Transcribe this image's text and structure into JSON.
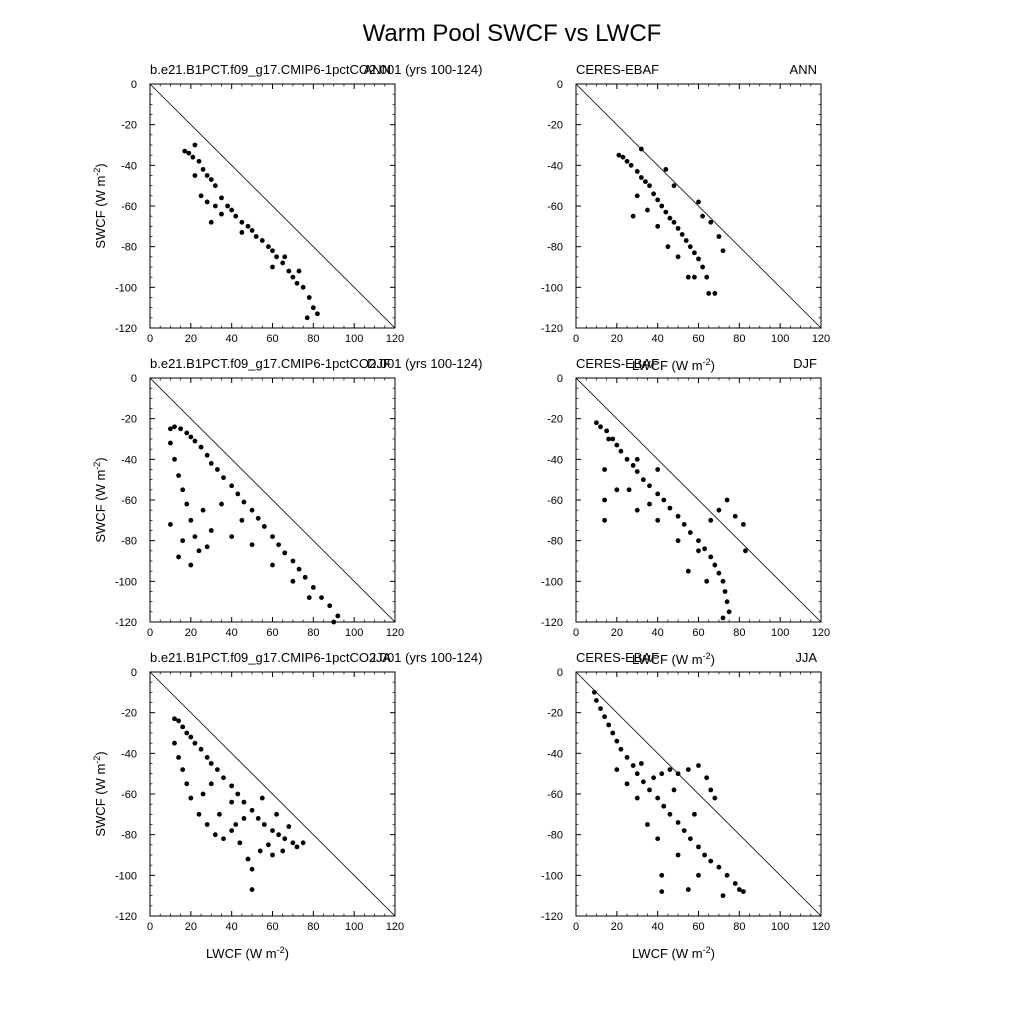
{
  "title": "Warm Pool SWCF vs LWCF",
  "axis_labels": {
    "x_base": "LWCF (W m",
    "y_base": "SWCF (W m",
    "unit_exponent": "-2",
    "close": ")"
  },
  "chart_data": [
    {
      "type": "scatter",
      "left_label": "b.e21.B1PCT.f09_g17.CMIP6-1pctCO2.001 (yrs 100-124)",
      "right_label": "ANN",
      "xlim": [
        0,
        120
      ],
      "ylim": [
        -120,
        0
      ],
      "xticks": [
        0,
        20,
        40,
        60,
        80,
        100,
        120
      ],
      "yticks": [
        0,
        -20,
        -40,
        -60,
        -80,
        -100,
        -120
      ],
      "xlabel": "",
      "ylabel": "SWCF (W m-2)",
      "reference_line": "y = -x",
      "grid": false,
      "points": [
        [
          17,
          -33
        ],
        [
          19,
          -34
        ],
        [
          21,
          -36
        ],
        [
          22,
          -30
        ],
        [
          24,
          -38
        ],
        [
          26,
          -42
        ],
        [
          28,
          -45
        ],
        [
          30,
          -47
        ],
        [
          32,
          -50
        ],
        [
          22,
          -45
        ],
        [
          25,
          -55
        ],
        [
          28,
          -58
        ],
        [
          32,
          -60
        ],
        [
          35,
          -56
        ],
        [
          38,
          -60
        ],
        [
          40,
          -62
        ],
        [
          42,
          -65
        ],
        [
          45,
          -68
        ],
        [
          48,
          -70
        ],
        [
          50,
          -72
        ],
        [
          52,
          -75
        ],
        [
          55,
          -77
        ],
        [
          58,
          -80
        ],
        [
          60,
          -82
        ],
        [
          62,
          -85
        ],
        [
          65,
          -88
        ],
        [
          68,
          -92
        ],
        [
          70,
          -95
        ],
        [
          72,
          -98
        ],
        [
          75,
          -100
        ],
        [
          78,
          -105
        ],
        [
          80,
          -110
        ],
        [
          82,
          -113
        ],
        [
          77,
          -115
        ],
        [
          30,
          -68
        ],
        [
          35,
          -64
        ],
        [
          45,
          -73
        ],
        [
          60,
          -90
        ],
        [
          66,
          -85
        ],
        [
          73,
          -92
        ]
      ]
    },
    {
      "type": "scatter",
      "left_label": "CERES-EBAF",
      "right_label": "ANN",
      "xlim": [
        0,
        120
      ],
      "ylim": [
        -120,
        0
      ],
      "xticks": [
        0,
        20,
        40,
        60,
        80,
        100,
        120
      ],
      "yticks": [
        0,
        -20,
        -40,
        -60,
        -80,
        -100,
        -120
      ],
      "xlabel": "LWCF (W m-2)",
      "ylabel": "",
      "reference_line": "y = -x",
      "grid": false,
      "points": [
        [
          21,
          -35
        ],
        [
          23,
          -36
        ],
        [
          25,
          -38
        ],
        [
          27,
          -40
        ],
        [
          30,
          -43
        ],
        [
          32,
          -46
        ],
        [
          34,
          -48
        ],
        [
          36,
          -50
        ],
        [
          38,
          -54
        ],
        [
          40,
          -57
        ],
        [
          42,
          -60
        ],
        [
          44,
          -63
        ],
        [
          46,
          -66
        ],
        [
          48,
          -68
        ],
        [
          50,
          -71
        ],
        [
          52,
          -74
        ],
        [
          54,
          -77
        ],
        [
          56,
          -80
        ],
        [
          58,
          -83
        ],
        [
          60,
          -86
        ],
        [
          62,
          -90
        ],
        [
          64,
          -95
        ],
        [
          65,
          -103
        ],
        [
          68,
          -103
        ],
        [
          30,
          -55
        ],
        [
          28,
          -65
        ],
        [
          40,
          -70
        ],
        [
          45,
          -80
        ],
        [
          50,
          -85
        ],
        [
          55,
          -95
        ],
        [
          62,
          -65
        ],
        [
          66,
          -68
        ],
        [
          70,
          -75
        ],
        [
          72,
          -82
        ],
        [
          32,
          -32
        ],
        [
          44,
          -42
        ],
        [
          48,
          -50
        ],
        [
          60,
          -58
        ],
        [
          35,
          -62
        ],
        [
          58,
          -95
        ]
      ]
    },
    {
      "type": "scatter",
      "left_label": "b.e21.B1PCT.f09_g17.CMIP6-1pctCO2.001 (yrs 100-124)",
      "right_label": "DJF",
      "xlim": [
        0,
        120
      ],
      "ylim": [
        -120,
        0
      ],
      "xticks": [
        0,
        20,
        40,
        60,
        80,
        100,
        120
      ],
      "yticks": [
        0,
        -20,
        -40,
        -60,
        -80,
        -100,
        -120
      ],
      "xlabel": "",
      "ylabel": "SWCF (W m-2)",
      "reference_line": "y = -x",
      "grid": false,
      "points": [
        [
          10,
          -25
        ],
        [
          12,
          -24
        ],
        [
          15,
          -25
        ],
        [
          18,
          -27
        ],
        [
          20,
          -29
        ],
        [
          22,
          -31
        ],
        [
          25,
          -34
        ],
        [
          28,
          -38
        ],
        [
          30,
          -42
        ],
        [
          33,
          -45
        ],
        [
          36,
          -49
        ],
        [
          40,
          -53
        ],
        [
          43,
          -57
        ],
        [
          46,
          -61
        ],
        [
          50,
          -65
        ],
        [
          53,
          -69
        ],
        [
          56,
          -73
        ],
        [
          60,
          -78
        ],
        [
          63,
          -82
        ],
        [
          66,
          -86
        ],
        [
          70,
          -90
        ],
        [
          73,
          -94
        ],
        [
          76,
          -98
        ],
        [
          80,
          -103
        ],
        [
          84,
          -108
        ],
        [
          88,
          -112
        ],
        [
          92,
          -117
        ],
        [
          90,
          -120
        ],
        [
          10,
          -32
        ],
        [
          12,
          -40
        ],
        [
          14,
          -48
        ],
        [
          16,
          -55
        ],
        [
          18,
          -62
        ],
        [
          20,
          -70
        ],
        [
          22,
          -78
        ],
        [
          24,
          -85
        ],
        [
          14,
          -88
        ],
        [
          20,
          -92
        ],
        [
          30,
          -75
        ],
        [
          40,
          -78
        ],
        [
          50,
          -82
        ],
        [
          60,
          -92
        ],
        [
          70,
          -100
        ],
        [
          78,
          -108
        ],
        [
          26,
          -65
        ],
        [
          35,
          -62
        ],
        [
          45,
          -70
        ],
        [
          10,
          -72
        ],
        [
          16,
          -80
        ],
        [
          28,
          -83
        ]
      ]
    },
    {
      "type": "scatter",
      "left_label": "CERES-EBAF",
      "right_label": "DJF",
      "xlim": [
        0,
        120
      ],
      "ylim": [
        -120,
        0
      ],
      "xticks": [
        0,
        20,
        40,
        60,
        80,
        100,
        120
      ],
      "yticks": [
        0,
        -20,
        -40,
        -60,
        -80,
        -100,
        -120
      ],
      "xlabel": "LWCF (W m-2)",
      "ylabel": "",
      "reference_line": "y = -x",
      "grid": false,
      "points": [
        [
          10,
          -22
        ],
        [
          12,
          -24
        ],
        [
          15,
          -26
        ],
        [
          18,
          -30
        ],
        [
          20,
          -33
        ],
        [
          22,
          -36
        ],
        [
          25,
          -40
        ],
        [
          28,
          -43
        ],
        [
          30,
          -46
        ],
        [
          33,
          -50
        ],
        [
          36,
          -53
        ],
        [
          40,
          -57
        ],
        [
          43,
          -60
        ],
        [
          46,
          -64
        ],
        [
          50,
          -68
        ],
        [
          53,
          -72
        ],
        [
          56,
          -76
        ],
        [
          60,
          -80
        ],
        [
          63,
          -84
        ],
        [
          66,
          -88
        ],
        [
          68,
          -92
        ],
        [
          70,
          -96
        ],
        [
          72,
          -100
        ],
        [
          73,
          -105
        ],
        [
          74,
          -110
        ],
        [
          75,
          -115
        ],
        [
          72,
          -118
        ],
        [
          14,
          -45
        ],
        [
          14,
          -60
        ],
        [
          14,
          -70
        ],
        [
          20,
          -55
        ],
        [
          30,
          -65
        ],
        [
          40,
          -70
        ],
        [
          50,
          -80
        ],
        [
          60,
          -85
        ],
        [
          66,
          -70
        ],
        [
          70,
          -65
        ],
        [
          74,
          -60
        ],
        [
          78,
          -68
        ],
        [
          82,
          -72
        ],
        [
          83,
          -85
        ],
        [
          30,
          -40
        ],
        [
          40,
          -45
        ],
        [
          16,
          -30
        ],
        [
          26,
          -55
        ],
        [
          36,
          -62
        ],
        [
          55,
          -95
        ],
        [
          64,
          -100
        ]
      ]
    },
    {
      "type": "scatter",
      "left_label": "b.e21.B1PCT.f09_g17.CMIP6-1pctCO2.001 (yrs 100-124)",
      "right_label": "JJA",
      "xlim": [
        0,
        120
      ],
      "ylim": [
        -120,
        0
      ],
      "xticks": [
        0,
        20,
        40,
        60,
        80,
        100,
        120
      ],
      "yticks": [
        0,
        -20,
        -40,
        -60,
        -80,
        -100,
        -120
      ],
      "xlabel": "LWCF (W m-2)",
      "ylabel": "SWCF (W m-2)",
      "reference_line": "y = -x",
      "grid": false,
      "points": [
        [
          12,
          -23
        ],
        [
          14,
          -24
        ],
        [
          16,
          -27
        ],
        [
          18,
          -30
        ],
        [
          20,
          -32
        ],
        [
          22,
          -35
        ],
        [
          25,
          -38
        ],
        [
          28,
          -42
        ],
        [
          30,
          -45
        ],
        [
          33,
          -48
        ],
        [
          36,
          -52
        ],
        [
          40,
          -56
        ],
        [
          43,
          -60
        ],
        [
          46,
          -64
        ],
        [
          50,
          -68
        ],
        [
          53,
          -72
        ],
        [
          56,
          -75
        ],
        [
          60,
          -78
        ],
        [
          63,
          -80
        ],
        [
          66,
          -82
        ],
        [
          70,
          -84
        ],
        [
          72,
          -86
        ],
        [
          75,
          -84
        ],
        [
          65,
          -88
        ],
        [
          12,
          -35
        ],
        [
          14,
          -42
        ],
        [
          16,
          -48
        ],
        [
          18,
          -55
        ],
        [
          20,
          -62
        ],
        [
          24,
          -70
        ],
        [
          28,
          -75
        ],
        [
          32,
          -80
        ],
        [
          36,
          -82
        ],
        [
          40,
          -78
        ],
        [
          44,
          -84
        ],
        [
          48,
          -92
        ],
        [
          50,
          -97
        ],
        [
          50,
          -107
        ],
        [
          54,
          -88
        ],
        [
          58,
          -85
        ],
        [
          60,
          -90
        ],
        [
          30,
          -55
        ],
        [
          40,
          -64
        ],
        [
          46,
          -72
        ],
        [
          55,
          -62
        ],
        [
          62,
          -70
        ],
        [
          68,
          -76
        ],
        [
          26,
          -60
        ],
        [
          34,
          -70
        ],
        [
          42,
          -75
        ]
      ]
    },
    {
      "type": "scatter",
      "left_label": "CERES-EBAF",
      "right_label": "JJA",
      "xlim": [
        0,
        120
      ],
      "ylim": [
        -120,
        0
      ],
      "xticks": [
        0,
        20,
        40,
        60,
        80,
        100,
        120
      ],
      "yticks": [
        0,
        -20,
        -40,
        -60,
        -80,
        -100,
        -120
      ],
      "xlabel": "LWCF (W m-2)",
      "ylabel": "",
      "reference_line": "y = -x",
      "grid": false,
      "points": [
        [
          9,
          -10
        ],
        [
          10,
          -14
        ],
        [
          12,
          -18
        ],
        [
          14,
          -22
        ],
        [
          16,
          -26
        ],
        [
          18,
          -30
        ],
        [
          20,
          -34
        ],
        [
          22,
          -38
        ],
        [
          25,
          -42
        ],
        [
          28,
          -46
        ],
        [
          30,
          -50
        ],
        [
          33,
          -54
        ],
        [
          36,
          -58
        ],
        [
          40,
          -62
        ],
        [
          43,
          -66
        ],
        [
          46,
          -70
        ],
        [
          50,
          -74
        ],
        [
          53,
          -78
        ],
        [
          56,
          -82
        ],
        [
          60,
          -86
        ],
        [
          63,
          -90
        ],
        [
          66,
          -93
        ],
        [
          70,
          -96
        ],
        [
          74,
          -100
        ],
        [
          78,
          -104
        ],
        [
          80,
          -107
        ],
        [
          82,
          -108
        ],
        [
          72,
          -110
        ],
        [
          38,
          -52
        ],
        [
          42,
          -50
        ],
        [
          46,
          -48
        ],
        [
          50,
          -50
        ],
        [
          55,
          -48
        ],
        [
          60,
          -46
        ],
        [
          64,
          -52
        ],
        [
          66,
          -58
        ],
        [
          68,
          -62
        ],
        [
          30,
          -62
        ],
        [
          35,
          -75
        ],
        [
          40,
          -82
        ],
        [
          42,
          -100
        ],
        [
          42,
          -108
        ],
        [
          50,
          -90
        ],
        [
          55,
          -107
        ],
        [
          60,
          -100
        ],
        [
          25,
          -55
        ],
        [
          20,
          -48
        ],
        [
          32,
          -45
        ],
        [
          48,
          -58
        ],
        [
          58,
          -70
        ]
      ]
    }
  ]
}
